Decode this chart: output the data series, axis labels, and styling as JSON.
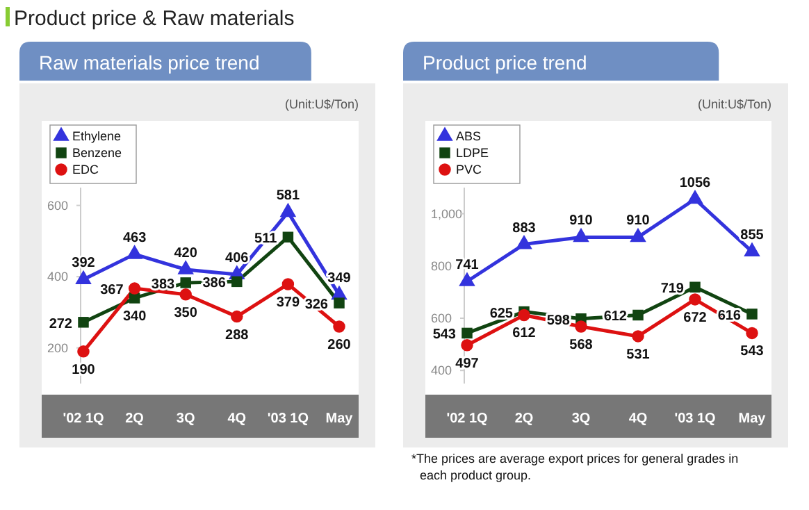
{
  "chart_data": [
    {
      "type": "line",
      "title": "Raw materials price trend",
      "annotations": [
        "Product price & Raw materials",
        "(Unit:U$/Ton)"
      ],
      "categories": [
        "'02 1Q",
        "2Q",
        "3Q",
        "4Q",
        "'03 1Q",
        "May"
      ],
      "ylim": [
        100,
        650
      ],
      "yticks": [
        200,
        400,
        600
      ],
      "data_labels": true,
      "legend": "top left",
      "grid": false,
      "line_style": "solid",
      "series": [
        {
          "name": "Ethylene",
          "color": "#3333dd",
          "marker": "triangle",
          "values": [
            392,
            463,
            420,
            406,
            581,
            349
          ]
        },
        {
          "name": "Benzene",
          "color": "#114411",
          "marker": "square",
          "values": [
            272,
            340,
            383,
            386,
            511,
            326
          ]
        },
        {
          "name": "EDC",
          "color": "#dd1111",
          "marker": "circle",
          "values": [
            190,
            367,
            350,
            288,
            379,
            260
          ]
        }
      ]
    },
    {
      "type": "line",
      "title": "Product price trend",
      "annotations": [
        "(Unit:U$/Ton)",
        "*The prices are average export prices for general grades in each product group."
      ],
      "categories": [
        "'02 1Q",
        "2Q",
        "3Q",
        "4Q",
        "'03 1Q",
        "May"
      ],
      "ylim": [
        350,
        1100
      ],
      "yticks": [
        400,
        600,
        800,
        {
          "value": 1000,
          "label": "1,000"
        }
      ],
      "data_labels": true,
      "legend": "top left",
      "grid": false,
      "line_style": "solid",
      "series": [
        {
          "name": "ABS",
          "color": "#3333dd",
          "marker": "triangle",
          "values": [
            741,
            883,
            910,
            910,
            1056,
            855
          ]
        },
        {
          "name": "LDPE",
          "color": "#114411",
          "marker": "square",
          "values": [
            543,
            625,
            598,
            612,
            719,
            616
          ]
        },
        {
          "name": "PVC",
          "color": "#dd1111",
          "marker": "circle",
          "values": [
            497,
            612,
            568,
            531,
            672,
            543
          ]
        }
      ]
    }
  ]
}
